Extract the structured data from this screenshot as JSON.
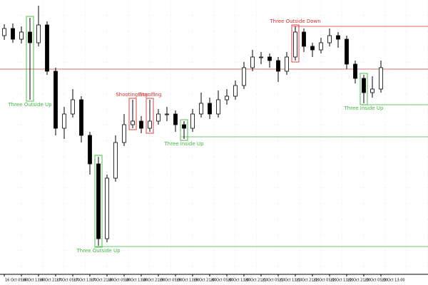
{
  "chart_data": {
    "type": "candlestick",
    "categories": [
      "16 Oct 05:00",
      null,
      "16 Oct 13:00",
      null,
      "16 Oct 21:00",
      null,
      "17 Oct 05:00",
      null,
      "17 Oct 13:00",
      null,
      "17 Oct 21:00",
      null,
      "18 Oct 05:00",
      null,
      "18 Oct 13:00",
      null,
      "18 Oct 21:00",
      null,
      "19 Oct 05:00",
      null,
      "19 Oct 13:00",
      null,
      "19 Oct 21:00",
      null,
      "20 Oct 05:00",
      null,
      "20 Oct 13:00",
      null,
      "20 Oct 21:00",
      null,
      "21 Oct 05:00",
      null,
      "21 Oct 13:00",
      null,
      "21 Oct 21:00",
      null,
      "22 Oct 05:00",
      null,
      "22 Oct 13:00",
      null,
      "22 Oct 21:00",
      null,
      "23 Oct 05:00",
      null,
      "23 Oct 13:00"
    ],
    "open": [
      335,
      345,
      330,
      340,
      325,
      350,
      285,
      205,
      225,
      245,
      195,
      155,
      50,
      135,
      185,
      210,
      215,
      205,
      215,
      225,
      225,
      210,
      205,
      225,
      240,
      225,
      245,
      250,
      265,
      290,
      305,
      305,
      300,
      285,
      305,
      340,
      320,
      315,
      325,
      335,
      330,
      295,
      275,
      255,
      260
    ],
    "high": [
      351,
      352,
      348,
      360,
      377,
      355,
      290,
      235,
      260,
      250,
      200,
      165,
      140,
      195,
      225,
      245,
      222,
      245,
      232,
      235,
      230,
      215,
      232,
      255,
      248,
      258,
      260,
      272,
      298,
      315,
      312,
      310,
      305,
      312,
      348,
      345,
      325,
      332,
      345,
      340,
      335,
      300,
      280,
      278,
      300
    ],
    "low": [
      329,
      325,
      324,
      245,
      320,
      280,
      195,
      190,
      220,
      185,
      140,
      40,
      45,
      130,
      180,
      205,
      198,
      200,
      210,
      215,
      200,
      190,
      200,
      220,
      218,
      220,
      238,
      245,
      260,
      285,
      295,
      290,
      270,
      280,
      300,
      312,
      305,
      310,
      320,
      318,
      288,
      268,
      240,
      248,
      255
    ],
    "close": [
      345,
      330,
      340,
      325,
      350,
      285,
      205,
      225,
      245,
      195,
      155,
      50,
      135,
      185,
      210,
      215,
      205,
      215,
      225,
      225,
      210,
      205,
      225,
      240,
      225,
      245,
      250,
      265,
      290,
      305,
      305,
      300,
      285,
      305,
      340,
      320,
      315,
      325,
      335,
      330,
      295,
      275,
      255,
      260,
      290
    ],
    "up_color": "#ffffff",
    "down_color": "#000000",
    "ylim": [
      0,
      385
    ],
    "levels": [
      {
        "value": 288,
        "color": "#b04848"
      }
    ],
    "patterns": [
      {
        "label": "Three Outside Up",
        "color": "#3cb83c",
        "bar": 3,
        "placement": "below"
      },
      {
        "label": "Shooting Star",
        "color": "#d83030",
        "bar": 15,
        "placement": "above"
      },
      {
        "label": "Engulfing",
        "color": "#d83030",
        "bar": 17,
        "placement": "above"
      },
      {
        "label": "Three Inside Up",
        "color": "#3cb83c",
        "bar": 21,
        "placement": "below",
        "level": 193
      },
      {
        "label": "Three Outside Up",
        "color": "#3cb83c",
        "bar": 11,
        "placement": "below",
        "level": 39
      },
      {
        "label": "Three Outside Down",
        "color": "#d83030",
        "bar": 34,
        "placement": "above",
        "level": 348
      },
      {
        "label": "Three Inside Up",
        "color": "#3cb83c",
        "bar": 42,
        "placement": "below",
        "level": 238
      }
    ]
  }
}
